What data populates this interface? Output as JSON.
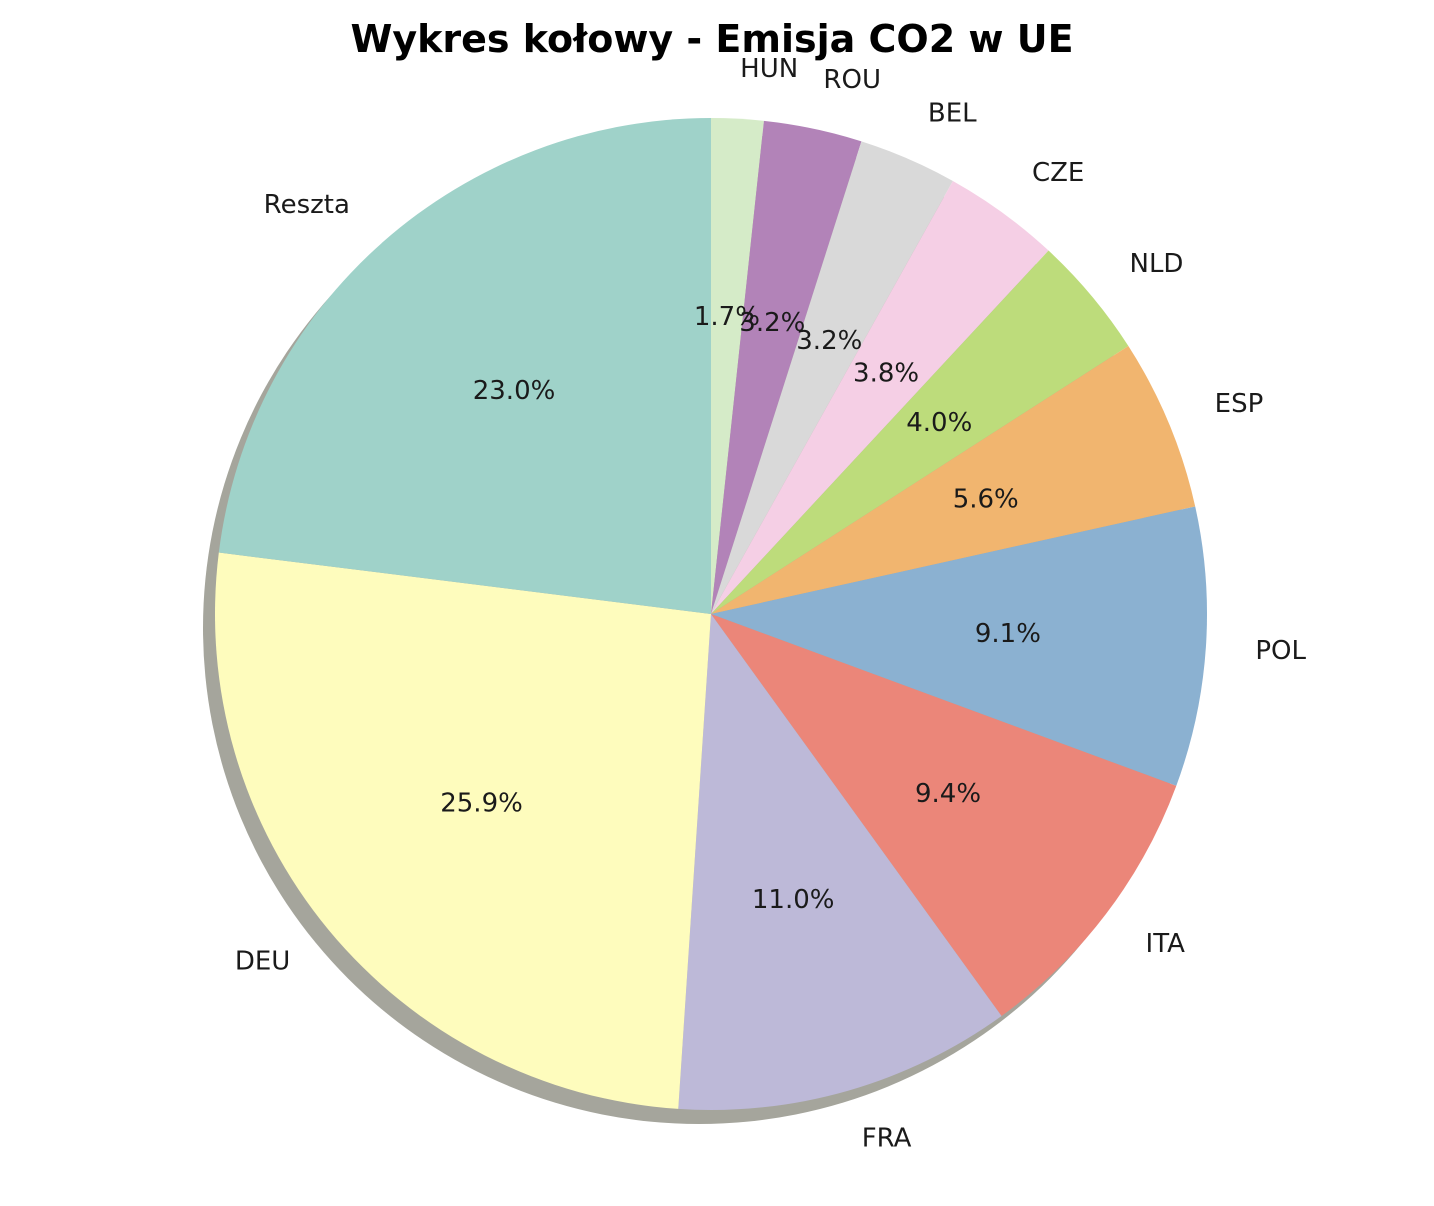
{
  "chart_data": {
    "type": "pie",
    "title": "Wykres kołowy - Emisja CO2 w UE",
    "labels": [
      "HUN",
      "ROU",
      "BEL",
      "CZE",
      "NLD",
      "ESP",
      "POL",
      "ITA",
      "FRA",
      "DEU",
      "Reszta"
    ],
    "values": [
      1.7,
      3.2,
      3.2,
      3.8,
      4.0,
      5.6,
      9.1,
      9.4,
      11.0,
      25.9,
      23.0
    ],
    "value_labels": [
      "1.7%",
      "3.2%",
      "3.2%",
      "3.8%",
      "4.0%",
      "5.6%",
      "9.1%",
      "9.4%",
      "11.0%",
      "25.9%",
      "23.0%"
    ],
    "colors": [
      "#d5ebc8",
      "#b283b8",
      "#d9d9d9",
      "#f5cfe5",
      "#bddc7b",
      "#f1b56f",
      "#8bb1d1",
      "#eb8679",
      "#bdb9d8",
      "#fefcbd",
      "#9fd2c9"
    ],
    "start_angle_deg": 90,
    "direction": "clockwise",
    "shadow": true
  }
}
